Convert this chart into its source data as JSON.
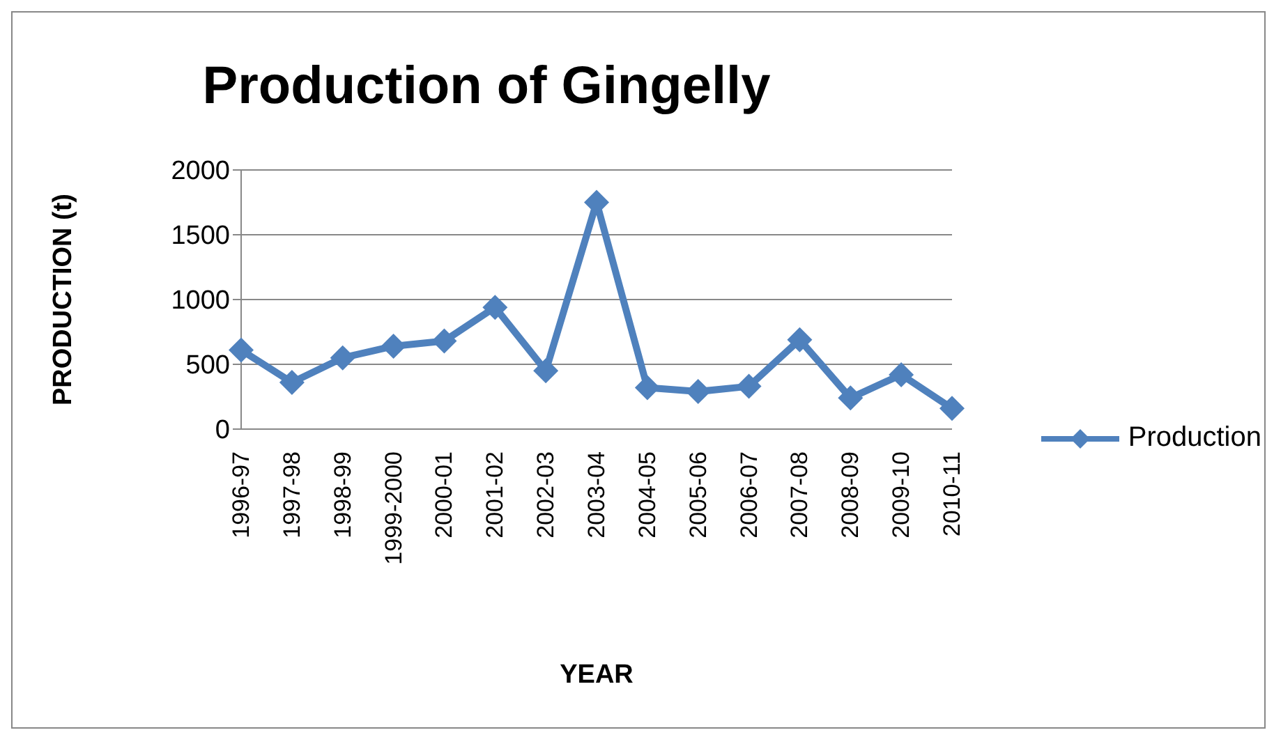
{
  "chart_data": {
    "type": "line",
    "title": "Production of Gingelly",
    "xlabel": "YEAR",
    "ylabel": "PRODUCTION (t)",
    "categories": [
      "1996-97",
      "1997-98",
      "1998-99",
      "1999-2000",
      "2000-01",
      "2001-02",
      "2002-03",
      "2003-04",
      "2004-05",
      "2005-06",
      "2006-07",
      "2007-08",
      "2008-09",
      "2009-10",
      "2010-11"
    ],
    "series": [
      {
        "name": "Production",
        "color": "#4f81bd",
        "values": [
          610,
          360,
          550,
          640,
          680,
          940,
          450,
          1750,
          320,
          290,
          330,
          690,
          240,
          420,
          160
        ]
      }
    ],
    "ylim": [
      0,
      2000
    ],
    "yticks": [
      0,
      500,
      1000,
      1500,
      2000
    ],
    "grid": "y",
    "legend": "right",
    "marker": "diamond",
    "line_style": "solid"
  }
}
